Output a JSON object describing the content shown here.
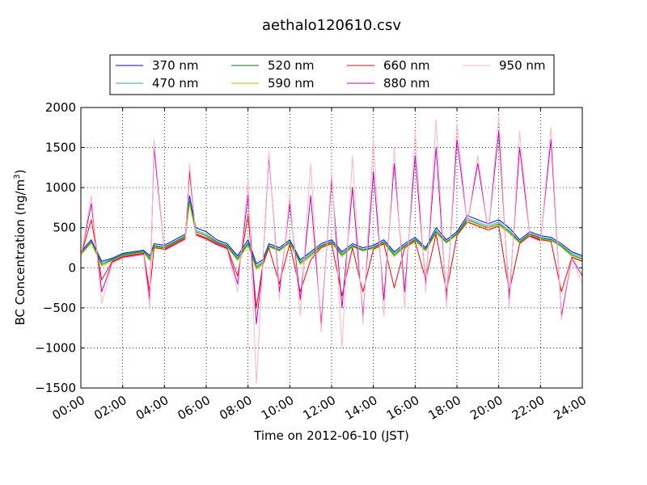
{
  "chart_data": {
    "type": "line",
    "title": "aethalo120610.csv",
    "xlabel": "Time on 2012-06-10 (JST)",
    "ylabel": "BC Concentration (ng/m³)",
    "ylabel_main": "BC Concentration (ng/m",
    "ylabel_sup": "3",
    "ylabel_end": ")",
    "xlim": [
      0,
      24
    ],
    "ylim": [
      -1500,
      2000
    ],
    "x_ticks": [
      0,
      2,
      4,
      6,
      8,
      10,
      12,
      14,
      16,
      18,
      20,
      22,
      24
    ],
    "x_tick_labels": [
      "00:00",
      "02:00",
      "04:00",
      "06:00",
      "08:00",
      "10:00",
      "12:00",
      "14:00",
      "16:00",
      "18:00",
      "20:00",
      "22:00",
      "24:00"
    ],
    "y_ticks": [
      -1500,
      -1000,
      -500,
      0,
      500,
      1000,
      1500,
      2000
    ],
    "y_tick_labels": [
      "−1500",
      "−1000",
      "−500",
      "0",
      "500",
      "1000",
      "1500",
      "2000"
    ],
    "grid": true,
    "legend_position": "top-center",
    "series": [
      {
        "name": "370 nm",
        "color": "#0000ff",
        "x": [
          0,
          0.5,
          1,
          1.5,
          2,
          2.5,
          3,
          3.3,
          3.5,
          4,
          4.5,
          5,
          5.2,
          5.5,
          6,
          6.5,
          7,
          7.5,
          8,
          8.4,
          8.7,
          9,
          9.5,
          10,
          10.5,
          11,
          11.5,
          12,
          12.5,
          13,
          13.5,
          14,
          14.5,
          15,
          15.5,
          16,
          16.5,
          17,
          17.5,
          18,
          18.5,
          19,
          19.5,
          20,
          20.5,
          21,
          21.5,
          22,
          22.5,
          23,
          23.5,
          24
        ],
        "y": [
          200,
          350,
          80,
          120,
          180,
          200,
          220,
          150,
          300,
          280,
          350,
          420,
          900,
          500,
          450,
          350,
          300,
          150,
          350,
          50,
          100,
          300,
          250,
          350,
          100,
          200,
          300,
          350,
          200,
          300,
          250,
          280,
          350,
          200,
          300,
          380,
          250,
          500,
          350,
          450,
          650,
          600,
          550,
          600,
          500,
          350,
          450,
          400,
          380,
          300,
          200,
          150
        ]
      },
      {
        "name": "470 nm",
        "color": "#20b2aa",
        "x": [
          0,
          0.5,
          1,
          1.5,
          2,
          2.5,
          3,
          3.3,
          3.5,
          4,
          4.5,
          5,
          5.2,
          5.5,
          6,
          6.5,
          7,
          7.5,
          8,
          8.4,
          8.7,
          9,
          9.5,
          10,
          10.5,
          11,
          11.5,
          12,
          12.5,
          13,
          13.5,
          14,
          14.5,
          15,
          15.5,
          16,
          16.5,
          17,
          17.5,
          18,
          18.5,
          19,
          19.5,
          20,
          20.5,
          21,
          21.5,
          22,
          22.5,
          23,
          23.5,
          24
        ],
        "y": [
          180,
          330,
          60,
          110,
          170,
          190,
          210,
          130,
          280,
          260,
          330,
          400,
          850,
          470,
          420,
          330,
          280,
          130,
          320,
          20,
          80,
          280,
          230,
          330,
          80,
          180,
          280,
          330,
          180,
          280,
          230,
          260,
          330,
          180,
          280,
          360,
          230,
          470,
          330,
          430,
          620,
          570,
          520,
          570,
          470,
          330,
          430,
          380,
          360,
          280,
          180,
          130
        ]
      },
      {
        "name": "520 nm",
        "color": "#008000",
        "x": [
          0,
          0.5,
          1,
          1.5,
          2,
          2.5,
          3,
          3.3,
          3.5,
          4,
          4.5,
          5,
          5.2,
          5.5,
          6,
          6.5,
          7,
          7.5,
          8,
          8.4,
          8.7,
          9,
          9.5,
          10,
          10.5,
          11,
          11.5,
          12,
          12.5,
          13,
          13.5,
          14,
          14.5,
          15,
          15.5,
          16,
          16.5,
          17,
          17.5,
          18,
          18.5,
          19,
          19.5,
          20,
          20.5,
          21,
          21.5,
          22,
          22.5,
          23,
          23.5,
          24
        ],
        "y": [
          170,
          320,
          40,
          100,
          160,
          180,
          200,
          110,
          270,
          250,
          320,
          390,
          820,
          450,
          400,
          320,
          270,
          110,
          300,
          0,
          60,
          270,
          220,
          320,
          60,
          160,
          270,
          320,
          160,
          270,
          220,
          250,
          320,
          160,
          270,
          350,
          220,
          450,
          320,
          420,
          600,
          550,
          500,
          550,
          450,
          320,
          420,
          370,
          350,
          270,
          160,
          110
        ]
      },
      {
        "name": "590 nm",
        "color": "#bfbf00",
        "x": [
          0,
          0.5,
          1,
          1.5,
          2,
          2.5,
          3,
          3.3,
          3.5,
          4,
          4.5,
          5,
          5.2,
          5.5,
          6,
          6.5,
          7,
          7.5,
          8,
          8.4,
          8.7,
          9,
          9.5,
          10,
          10.5,
          11,
          11.5,
          12,
          12.5,
          13,
          13.5,
          14,
          14.5,
          15,
          15.5,
          16,
          16.5,
          17,
          17.5,
          18,
          18.5,
          19,
          19.5,
          20,
          20.5,
          21,
          21.5,
          22,
          22.5,
          23,
          23.5,
          24
        ],
        "y": [
          160,
          310,
          20,
          90,
          150,
          170,
          190,
          90,
          260,
          240,
          310,
          380,
          800,
          430,
          380,
          310,
          260,
          90,
          280,
          -20,
          40,
          260,
          210,
          310,
          40,
          140,
          260,
          310,
          140,
          260,
          210,
          240,
          310,
          140,
          260,
          340,
          210,
          430,
          310,
          410,
          580,
          530,
          480,
          530,
          430,
          310,
          410,
          360,
          340,
          260,
          140,
          90
        ]
      },
      {
        "name": "660 nm",
        "color": "#ff0000",
        "x": [
          0,
          0.5,
          1,
          1.5,
          2,
          2.5,
          3,
          3.3,
          3.5,
          4,
          4.5,
          5,
          5.2,
          5.5,
          6,
          6.5,
          7,
          7.5,
          8,
          8.4,
          8.7,
          9,
          9.5,
          10,
          10.5,
          11,
          11.5,
          12,
          12.5,
          13,
          13.5,
          14,
          14.5,
          15,
          15.5,
          16,
          16.5,
          17,
          17.5,
          18,
          18.5,
          19,
          19.5,
          20,
          20.5,
          21,
          21.5,
          22,
          22.5,
          23,
          23.5,
          24
        ],
        "y": [
          150,
          600,
          -150,
          80,
          140,
          160,
          180,
          -300,
          250,
          230,
          300,
          370,
          1200,
          420,
          370,
          300,
          250,
          -100,
          650,
          -500,
          30,
          250,
          -200,
          300,
          -300,
          100,
          250,
          300,
          -350,
          250,
          -300,
          230,
          300,
          -250,
          250,
          330,
          -150,
          420,
          -300,
          400,
          570,
          520,
          470,
          520,
          -300,
          300,
          400,
          350,
          330,
          -300,
          130,
          80
        ]
      },
      {
        "name": "880 nm",
        "color": "#c000c0",
        "x": [
          0,
          0.5,
          1,
          1.5,
          2,
          2.5,
          3,
          3.3,
          3.5,
          4,
          4.5,
          5,
          5.2,
          5.5,
          6,
          6.5,
          7,
          7.5,
          8,
          8.4,
          8.7,
          9,
          9.5,
          10,
          10.5,
          11,
          11.5,
          12,
          12.5,
          13,
          13.5,
          14,
          14.5,
          15,
          15.5,
          16,
          16.5,
          17,
          17.5,
          18,
          18.5,
          19,
          19.5,
          20,
          20.5,
          21,
          21.5,
          22,
          22.5,
          23,
          23.5,
          24
        ],
        "y": [
          140,
          800,
          -300,
          70,
          130,
          150,
          170,
          -400,
          1500,
          220,
          290,
          360,
          1250,
          410,
          360,
          290,
          240,
          -200,
          900,
          -700,
          20,
          1400,
          -300,
          800,
          -400,
          900,
          -700,
          1100,
          -500,
          1000,
          -600,
          1200,
          -400,
          1300,
          -300,
          1400,
          -200,
          1500,
          -400,
          1600,
          560,
          1300,
          460,
          1700,
          -400,
          1500,
          390,
          340,
          1600,
          -600,
          120,
          -100
        ]
      },
      {
        "name": "950 nm",
        "color": "#ffb6c1",
        "x": [
          0,
          0.5,
          1,
          1.5,
          2,
          2.5,
          3,
          3.3,
          3.5,
          4,
          4.5,
          5,
          5.2,
          5.5,
          6,
          6.5,
          7,
          7.5,
          8,
          8.4,
          8.7,
          9,
          9.5,
          10,
          10.5,
          11,
          11.5,
          12,
          12.5,
          13,
          13.5,
          14,
          14.5,
          15,
          15.5,
          16,
          16.5,
          17,
          17.5,
          18,
          18.5,
          19,
          19.5,
          20,
          20.5,
          21,
          21.5,
          22,
          22.5,
          23,
          23.5,
          24
        ],
        "y": [
          130,
          900,
          -450,
          60,
          120,
          140,
          160,
          -500,
          1600,
          210,
          280,
          350,
          1300,
          400,
          350,
          280,
          230,
          -300,
          1100,
          -1450,
          10,
          1450,
          -400,
          900,
          -600,
          1300,
          -800,
          1200,
          -1000,
          1400,
          -700,
          1600,
          -600,
          1500,
          -500,
          1700,
          -300,
          1850,
          -500,
          1800,
          550,
          1400,
          450,
          1900,
          -500,
          1700,
          380,
          330,
          1750,
          -650,
          110,
          -200
        ]
      }
    ]
  }
}
